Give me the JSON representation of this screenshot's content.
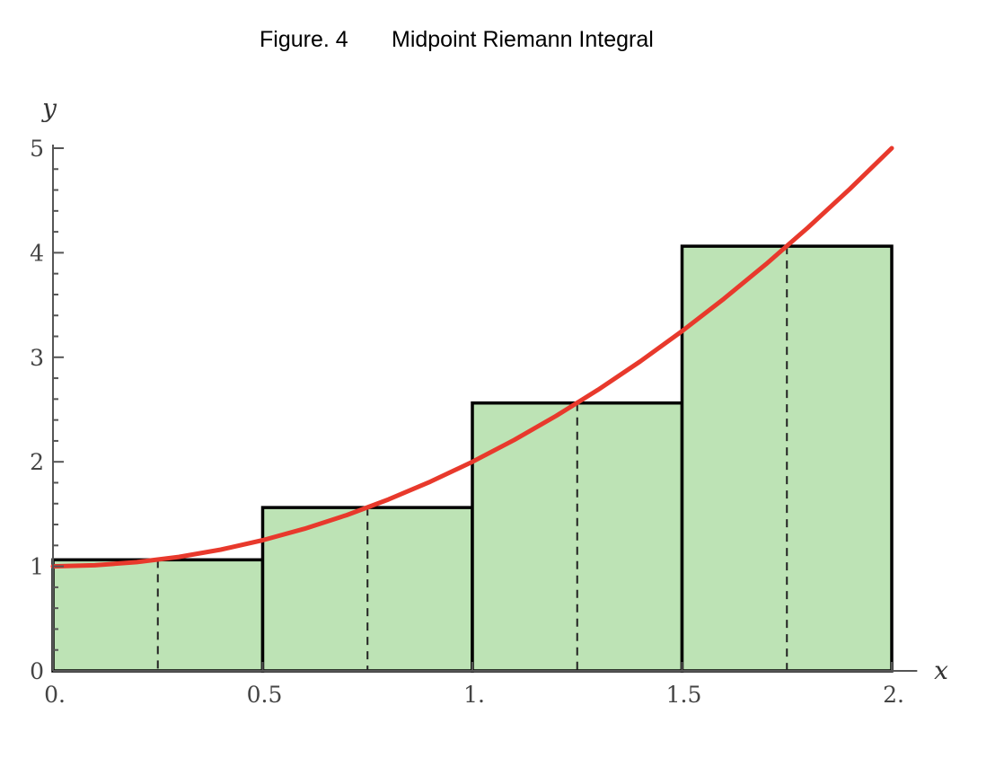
{
  "figure": {
    "number_label": "Figure. 4",
    "title": "Midpoint Riemann Integral"
  },
  "chart_data": {
    "type": "bar",
    "title": "Midpoint Riemann Integral",
    "xlabel": "x",
    "ylabel": "y",
    "xlim": [
      0,
      2.05
    ],
    "ylim": [
      0,
      5
    ],
    "x_ticks": [
      {
        "value": 0,
        "label": "0."
      },
      {
        "value": 0.5,
        "label": "0.5"
      },
      {
        "value": 1,
        "label": "1."
      },
      {
        "value": 1.5,
        "label": "1.5"
      },
      {
        "value": 2,
        "label": "2."
      }
    ],
    "y_ticks": [
      {
        "value": 0,
        "label": "0"
      },
      {
        "value": 1,
        "label": "1"
      },
      {
        "value": 2,
        "label": "2"
      },
      {
        "value": 3,
        "label": "3"
      },
      {
        "value": 4,
        "label": "4"
      },
      {
        "value": 5,
        "label": "5"
      }
    ],
    "y_minor_step": 0.2,
    "rectangles": [
      {
        "x0": 0,
        "x1": 0.5,
        "midpoint": 0.25,
        "height": 1.0625
      },
      {
        "x0": 0.5,
        "x1": 1,
        "midpoint": 0.75,
        "height": 1.5625
      },
      {
        "x0": 1,
        "x1": 1.5,
        "midpoint": 1.25,
        "height": 2.5625
      },
      {
        "x0": 1.5,
        "x1": 2,
        "midpoint": 1.75,
        "height": 4.0625
      }
    ],
    "curve": {
      "function": "y = x^2 + 1",
      "x": [
        0,
        0.1,
        0.2,
        0.3,
        0.4,
        0.5,
        0.6,
        0.7,
        0.8,
        0.9,
        1.0,
        1.1,
        1.2,
        1.3,
        1.4,
        1.5,
        1.6,
        1.7,
        1.8,
        1.9,
        2.0
      ],
      "y": [
        1,
        1.01,
        1.04,
        1.09,
        1.16,
        1.25,
        1.36,
        1.49,
        1.64,
        1.81,
        2,
        2.21,
        2.44,
        2.69,
        2.96,
        3.25,
        3.56,
        3.89,
        4.24,
        4.61,
        5
      ]
    },
    "colors": {
      "bar_fill": "#bde3b5",
      "bar_stroke": "#000000",
      "curve": "#e8392c",
      "axis": "#555555"
    },
    "grid": false
  }
}
